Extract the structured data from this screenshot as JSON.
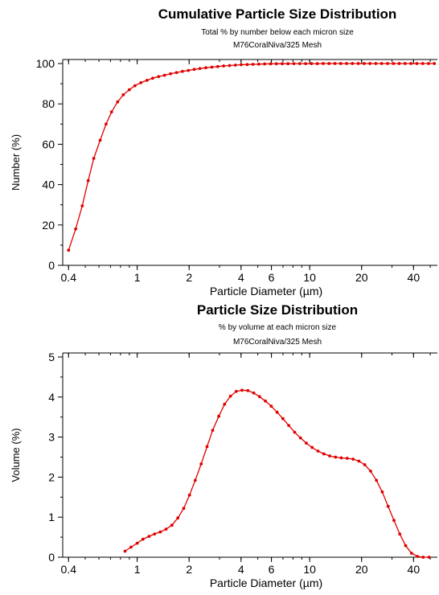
{
  "chart_data": [
    {
      "type": "line",
      "title": "Cumulative Particle Size Distribution",
      "subtitle1": "Total % by number below each micron size",
      "subtitle2": "M76CoralNiva/325 Mesh",
      "xlabel": "Particle Diameter (µm)",
      "ylabel": "Number (%)",
      "xscale": "log",
      "xlim": [
        0.37,
        55
      ],
      "ylim": [
        0,
        102
      ],
      "xticks": [
        {
          "v": 0.4,
          "label": "0.4"
        },
        {
          "v": 1,
          "label": "1"
        },
        {
          "v": 2,
          "label": "2"
        },
        {
          "v": 4,
          "label": "4"
        },
        {
          "v": 6,
          "label": "6"
        },
        {
          "v": 10,
          "label": "10"
        },
        {
          "v": 20,
          "label": "20"
        },
        {
          "v": 40,
          "label": "40"
        }
      ],
      "yticks": [
        {
          "v": 0,
          "label": "0"
        },
        {
          "v": 20,
          "label": "20"
        },
        {
          "v": 40,
          "label": "40"
        },
        {
          "v": 60,
          "label": "60"
        },
        {
          "v": 80,
          "label": "80"
        },
        {
          "v": 100,
          "label": "100"
        }
      ],
      "series": [
        {
          "color": "#e00000",
          "x": [
            0.4,
            0.44,
            0.48,
            0.52,
            0.56,
            0.61,
            0.66,
            0.71,
            0.77,
            0.83,
            0.9,
            0.97,
            1.05,
            1.14,
            1.23,
            1.33,
            1.44,
            1.56,
            1.69,
            1.83,
            1.98,
            2.14,
            2.31,
            2.5,
            2.71,
            2.93,
            3.17,
            3.43,
            3.71,
            4.01,
            4.34,
            4.69,
            5.07,
            5.48,
            5.93,
            6.41,
            6.93,
            7.49,
            8.1,
            8.76,
            9.47,
            10.24,
            11.07,
            11.97,
            12.94,
            13.99,
            15.13,
            16.36,
            17.69,
            19.13,
            20.68,
            22.36,
            24.18,
            26.15,
            28.27,
            30.57,
            33.05,
            35.74,
            38.64,
            41.78,
            45.18,
            48.85,
            52.82
          ],
          "y": [
            7.5,
            18,
            29.5,
            42,
            53,
            62,
            70,
            76,
            81,
            84.5,
            87,
            89,
            90.5,
            91.7,
            92.7,
            93.5,
            94.2,
            94.9,
            95.5,
            96.1,
            96.6,
            97.1,
            97.5,
            97.9,
            98.2,
            98.5,
            98.8,
            99.0,
            99.2,
            99.4,
            99.5,
            99.6,
            99.7,
            99.8,
            99.85,
            99.9,
            99.92,
            99.94,
            99.95,
            99.96,
            99.97,
            99.98,
            99.98,
            99.99,
            99.99,
            100,
            100,
            100,
            100,
            100,
            100,
            100,
            100,
            100,
            100,
            100,
            100,
            100,
            100,
            100,
            100,
            100,
            100
          ]
        }
      ]
    },
    {
      "type": "line",
      "title": "Particle Size Distribution",
      "subtitle1": "% by volume at each micron size",
      "subtitle2": "M76CoralNiva/325 Mesh",
      "xlabel": "Particle Diameter (µm)",
      "ylabel": "Volume (%)",
      "xscale": "log",
      "xlim": [
        0.37,
        55
      ],
      "ylim": [
        0,
        5.1
      ],
      "xticks": [
        {
          "v": 0.4,
          "label": "0.4"
        },
        {
          "v": 1,
          "label": "1"
        },
        {
          "v": 2,
          "label": "2"
        },
        {
          "v": 4,
          "label": "4"
        },
        {
          "v": 6,
          "label": "6"
        },
        {
          "v": 10,
          "label": "10"
        },
        {
          "v": 20,
          "label": "20"
        },
        {
          "v": 40,
          "label": "40"
        }
      ],
      "yticks": [
        {
          "v": 0,
          "label": "0"
        },
        {
          "v": 1,
          "label": "1"
        },
        {
          "v": 2,
          "label": "2"
        },
        {
          "v": 3,
          "label": "3"
        },
        {
          "v": 4,
          "label": "4"
        },
        {
          "v": 5,
          "label": "5"
        }
      ],
      "series": [
        {
          "color": "#e00000",
          "x": [
            0.85,
            0.92,
            1.0,
            1.08,
            1.17,
            1.26,
            1.36,
            1.47,
            1.59,
            1.72,
            1.86,
            2.01,
            2.17,
            2.35,
            2.54,
            2.74,
            2.97,
            3.21,
            3.47,
            3.75,
            4.05,
            4.38,
            4.74,
            5.12,
            5.54,
            5.99,
            6.47,
            7.0,
            7.56,
            8.18,
            8.84,
            9.56,
            10.33,
            11.17,
            12.08,
            13.06,
            14.12,
            15.26,
            16.5,
            17.84,
            19.29,
            20.85,
            22.54,
            24.37,
            26.35,
            28.49,
            30.8,
            33.3,
            36.0,
            38.92,
            42.08,
            45.49,
            49.18
          ],
          "y": [
            0.15,
            0.25,
            0.35,
            0.45,
            0.52,
            0.58,
            0.63,
            0.7,
            0.8,
            0.98,
            1.22,
            1.55,
            1.92,
            2.33,
            2.76,
            3.17,
            3.52,
            3.82,
            4.02,
            4.14,
            4.17,
            4.16,
            4.1,
            4.01,
            3.9,
            3.77,
            3.62,
            3.46,
            3.29,
            3.12,
            2.98,
            2.85,
            2.74,
            2.65,
            2.58,
            2.53,
            2.5,
            2.48,
            2.47,
            2.45,
            2.4,
            2.31,
            2.15,
            1.92,
            1.63,
            1.27,
            0.92,
            0.58,
            0.29,
            0.1,
            0.02,
            0.0,
            0.0
          ]
        }
      ]
    }
  ]
}
